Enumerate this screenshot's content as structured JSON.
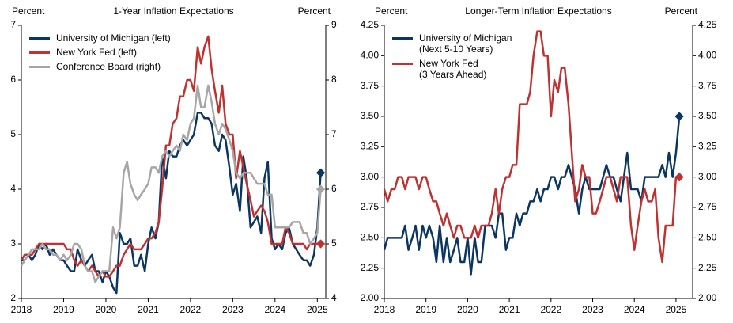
{
  "chart_data": [
    {
      "type": "line",
      "title": "1-Year Inflation Expectations",
      "ylabel": "Percent",
      "y2label": "Percent",
      "x": [
        2018,
        2018.08,
        2018.17,
        2018.25,
        2018.33,
        2018.42,
        2018.5,
        2018.58,
        2018.67,
        2018.75,
        2018.83,
        2018.92,
        2019,
        2019.08,
        2019.17,
        2019.25,
        2019.33,
        2019.42,
        2019.5,
        2019.58,
        2019.67,
        2019.75,
        2019.83,
        2019.92,
        2020,
        2020.08,
        2020.17,
        2020.25,
        2020.33,
        2020.42,
        2020.5,
        2020.58,
        2020.67,
        2020.75,
        2020.83,
        2020.92,
        2021,
        2021.08,
        2021.17,
        2021.25,
        2021.33,
        2021.42,
        2021.5,
        2021.58,
        2021.67,
        2021.75,
        2021.83,
        2021.92,
        2022,
        2022.08,
        2022.17,
        2022.25,
        2022.33,
        2022.42,
        2022.5,
        2022.58,
        2022.67,
        2022.75,
        2022.83,
        2022.92,
        2023,
        2023.08,
        2023.17,
        2023.25,
        2023.33,
        2023.42,
        2023.5,
        2023.58,
        2023.67,
        2023.75,
        2023.83,
        2023.92,
        2024,
        2024.08,
        2024.17,
        2024.25,
        2024.33,
        2024.42,
        2024.5,
        2024.58,
        2024.67,
        2024.75,
        2024.83,
        2024.92,
        2025,
        2025.08
      ],
      "xlim": [
        2018,
        2025.2
      ],
      "xticks": [
        2018,
        2019,
        2020,
        2021,
        2022,
        2023,
        2024,
        2025
      ],
      "ylim": [
        2,
        7
      ],
      "yticks": [
        2,
        3,
        4,
        5,
        6,
        7
      ],
      "y2lim": [
        4,
        9
      ],
      "y2ticks": [
        4,
        5,
        6,
        7,
        8,
        9
      ],
      "legend": "upper left",
      "series": [
        {
          "name": "University of Michigan (left)",
          "color": "#0b3661",
          "values": [
            2.7,
            2.7,
            2.8,
            2.7,
            2.8,
            3.0,
            2.9,
            3.0,
            2.8,
            2.9,
            2.8,
            2.7,
            2.7,
            2.6,
            2.5,
            2.5,
            2.9,
            2.7,
            2.6,
            2.7,
            2.8,
            2.5,
            2.5,
            2.3,
            2.5,
            2.4,
            2.2,
            2.1,
            3.2,
            3.0,
            3.0,
            3.1,
            2.6,
            2.6,
            2.8,
            2.5,
            3.0,
            3.3,
            3.1,
            3.4,
            4.6,
            4.2,
            4.7,
            4.6,
            4.6,
            4.8,
            4.9,
            4.8,
            4.9,
            5.0,
            5.4,
            5.4,
            5.3,
            5.3,
            5.2,
            4.8,
            4.7,
            5.0,
            4.9,
            4.4,
            3.9,
            4.1,
            3.6,
            4.6,
            4.2,
            3.3,
            3.4,
            3.5,
            3.2,
            4.2,
            4.5,
            3.1,
            2.9,
            3.0,
            2.9,
            3.2,
            3.3,
            3.0,
            2.9,
            2.8,
            2.7,
            2.7,
            2.6,
            2.8,
            3.3,
            4.3
          ]
        },
        {
          "name": "New York Fed (left)",
          "color": "#bf3232",
          "values": [
            2.7,
            2.8,
            2.8,
            2.8,
            2.9,
            3.0,
            3.0,
            3.0,
            3.0,
            3.0,
            3.0,
            3.0,
            3.0,
            2.9,
            2.9,
            2.7,
            2.6,
            2.7,
            2.6,
            2.5,
            2.6,
            2.5,
            2.4,
            2.5,
            2.4,
            2.4,
            2.5,
            2.6,
            2.6,
            2.8,
            2.9,
            3.0,
            2.9,
            2.9,
            2.9,
            3.0,
            3.1,
            3.1,
            3.2,
            3.4,
            4.0,
            4.8,
            4.8,
            5.2,
            5.3,
            5.7,
            5.7,
            6.0,
            6.0,
            5.8,
            6.6,
            6.3,
            6.6,
            6.8,
            6.2,
            5.8,
            5.4,
            5.9,
            5.2,
            5.0,
            5.0,
            4.2,
            4.7,
            4.4,
            4.1,
            3.8,
            3.5,
            3.6,
            3.7,
            3.6,
            3.4,
            3.0,
            3.0,
            3.0,
            3.0,
            3.3,
            3.2,
            3.0,
            3.0,
            3.0,
            3.0,
            2.9,
            3.0,
            3.0,
            3.0,
            3.0
          ]
        },
        {
          "name": "Conference Board (right)",
          "color": "#a6a6a6",
          "axis": "y2",
          "values": [
            4.6,
            4.7,
            4.8,
            4.9,
            4.9,
            4.9,
            5.0,
            4.9,
            4.9,
            4.8,
            4.8,
            4.7,
            4.8,
            4.7,
            4.8,
            5.0,
            5.0,
            4.9,
            4.6,
            4.5,
            4.5,
            4.3,
            4.4,
            4.5,
            4.5,
            4.5,
            5.3,
            5.1,
            5.3,
            6.3,
            6.5,
            6.1,
            5.9,
            5.8,
            5.9,
            6.0,
            6.1,
            6.4,
            6.4,
            6.3,
            6.6,
            6.7,
            6.6,
            6.7,
            6.8,
            6.7,
            7.0,
            6.9,
            7.2,
            7.3,
            7.9,
            7.5,
            7.5,
            7.9,
            7.6,
            7.2,
            7.0,
            7.2,
            7.1,
            6.9,
            6.7,
            6.3,
            6.2,
            6.3,
            6.3,
            6.3,
            6.2,
            6.1,
            6.1,
            6.1,
            5.9,
            5.9,
            5.3,
            5.3,
            5.3,
            5.3,
            5.3,
            5.4,
            5.4,
            5.4,
            5.2,
            5.2,
            5.0,
            5.1,
            5.2,
            6.0
          ]
        }
      ]
    },
    {
      "type": "line",
      "title": "Longer-Term Inflation Expectations",
      "ylabel": "Percent",
      "y2label": "Percent",
      "x": [
        2018,
        2018.08,
        2018.17,
        2018.25,
        2018.33,
        2018.42,
        2018.5,
        2018.58,
        2018.67,
        2018.75,
        2018.83,
        2018.92,
        2019,
        2019.08,
        2019.17,
        2019.25,
        2019.33,
        2019.42,
        2019.5,
        2019.58,
        2019.67,
        2019.75,
        2019.83,
        2019.92,
        2020,
        2020.08,
        2020.17,
        2020.25,
        2020.33,
        2020.42,
        2020.5,
        2020.58,
        2020.67,
        2020.75,
        2020.83,
        2020.92,
        2021,
        2021.08,
        2021.17,
        2021.25,
        2021.33,
        2021.42,
        2021.5,
        2021.58,
        2021.67,
        2021.75,
        2021.83,
        2021.92,
        2022,
        2022.08,
        2022.17,
        2022.25,
        2022.33,
        2022.42,
        2022.5,
        2022.58,
        2022.67,
        2022.75,
        2022.83,
        2022.92,
        2023,
        2023.08,
        2023.17,
        2023.25,
        2023.33,
        2023.42,
        2023.5,
        2023.58,
        2023.67,
        2023.75,
        2023.83,
        2023.92,
        2024,
        2024.08,
        2024.17,
        2024.25,
        2024.33,
        2024.42,
        2024.5,
        2024.58,
        2024.67,
        2024.75,
        2024.83,
        2024.92,
        2025,
        2025.08
      ],
      "xlim": [
        2018,
        2025.4
      ],
      "xticks": [
        2018,
        2019,
        2020,
        2021,
        2022,
        2023,
        2024,
        2025
      ],
      "ylim": [
        2,
        4.25
      ],
      "yticks": [
        {
          "value": 2,
          "label": "2.00"
        },
        2.25,
        {
          "value": 2.5,
          "label": "2.50"
        },
        2.75,
        {
          "value": 3,
          "label": "3.00"
        },
        3.25,
        {
          "value": 3.5,
          "label": "3.50"
        },
        3.75,
        {
          "value": 4,
          "label": "4.00"
        },
        4.25
      ],
      "y2lim": [
        2,
        4.25
      ],
      "y2ticks": [
        {
          "value": 2,
          "label": "2.00"
        },
        2.25,
        {
          "value": 2.5,
          "label": "2.50"
        },
        2.75,
        {
          "value": 3,
          "label": "3.00"
        },
        3.25,
        {
          "value": 3.5,
          "label": "3.50"
        },
        3.75,
        {
          "value": 4,
          "label": "4.00"
        },
        4.25
      ],
      "legend": "upper left",
      "series": [
        {
          "name": "University of Michigan\n(Next 5-10 Years)",
          "color": "#0b3661",
          "values": [
            2.4,
            2.5,
            2.5,
            2.5,
            2.5,
            2.5,
            2.6,
            2.4,
            2.5,
            2.6,
            2.4,
            2.6,
            2.5,
            2.6,
            2.5,
            2.3,
            2.6,
            2.3,
            2.5,
            2.3,
            2.4,
            2.5,
            2.3,
            2.3,
            2.5,
            2.2,
            2.5,
            2.3,
            2.3,
            2.6,
            2.6,
            2.6,
            2.5,
            2.7,
            2.7,
            2.4,
            2.5,
            2.5,
            2.7,
            2.6,
            2.7,
            2.7,
            2.8,
            2.8,
            2.9,
            2.8,
            2.9,
            2.9,
            3.0,
            3.0,
            2.9,
            3.0,
            3.0,
            3.1,
            3.0,
            2.9,
            2.7,
            2.9,
            3.0,
            2.9,
            2.9,
            2.9,
            2.9,
            3.0,
            3.1,
            3.0,
            3.0,
            2.9,
            2.8,
            3.0,
            3.2,
            2.9,
            2.9,
            2.9,
            2.8,
            3.0,
            3.0,
            3.0,
            3.0,
            3.0,
            3.1,
            3.0,
            3.2,
            3.0,
            3.2,
            3.5
          ]
        },
        {
          "name": "New York Fed\n(3 Years Ahead)",
          "color": "#bf3232",
          "values": [
            2.9,
            2.8,
            2.9,
            2.9,
            3.0,
            3.0,
            2.9,
            3.0,
            3.0,
            3.0,
            2.9,
            3.0,
            3.0,
            2.9,
            2.8,
            2.8,
            2.7,
            2.6,
            2.7,
            2.6,
            2.5,
            2.6,
            2.6,
            2.5,
            2.5,
            2.5,
            2.6,
            2.5,
            2.6,
            2.6,
            2.6,
            2.7,
            2.9,
            2.7,
            2.9,
            3.0,
            3.0,
            3.1,
            3.1,
            3.6,
            3.6,
            3.6,
            3.7,
            4.0,
            4.2,
            4.2,
            4.0,
            4.0,
            3.5,
            3.8,
            3.7,
            3.9,
            3.9,
            3.6,
            3.2,
            2.8,
            2.9,
            3.1,
            3.0,
            3.0,
            2.7,
            2.7,
            2.8,
            2.9,
            3.0,
            3.0,
            2.9,
            2.8,
            3.0,
            3.0,
            3.0,
            2.6,
            2.4,
            2.6,
            2.8,
            2.9,
            2.8,
            2.8,
            2.9,
            2.5,
            2.3,
            2.6,
            2.6,
            2.6,
            3.0,
            3.0
          ]
        }
      ]
    }
  ]
}
